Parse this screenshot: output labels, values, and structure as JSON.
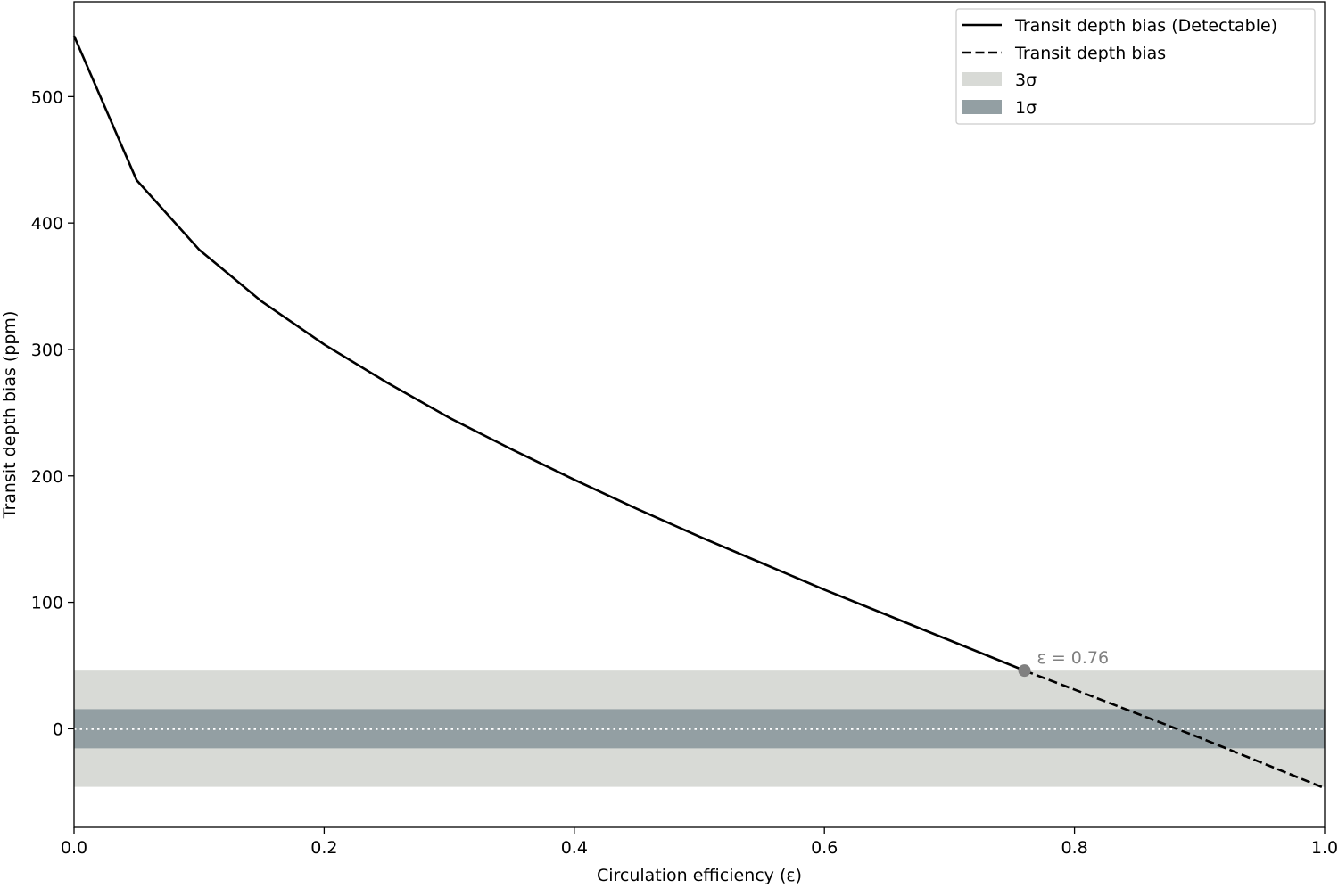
{
  "chart_data": {
    "type": "line",
    "xlabel": "Circulation efficiency (ε)",
    "ylabel": "Transit depth bias (ppm)",
    "xlim": [
      0.0,
      1.0
    ],
    "ylim": [
      -78,
      575
    ],
    "x_ticks": [
      0.0,
      0.2,
      0.4,
      0.6,
      0.8,
      1.0
    ],
    "x_tick_labels": [
      "0.0",
      "0.2",
      "0.4",
      "0.6",
      "0.8",
      "1.0"
    ],
    "y_ticks": [
      0,
      100,
      200,
      300,
      400,
      500
    ],
    "y_tick_labels": [
      "0",
      "100",
      "200",
      "300",
      "400",
      "500"
    ],
    "grid": false,
    "legend_placement": "top-right",
    "series": [
      {
        "name": "Transit depth bias (Detectable)",
        "style": "solid",
        "color": "#000000",
        "x": [
          0.0,
          0.05,
          0.1,
          0.15,
          0.2,
          0.25,
          0.3,
          0.35,
          0.4,
          0.45,
          0.5,
          0.55,
          0.6,
          0.65,
          0.7,
          0.76
        ],
        "y": [
          548,
          434,
          379,
          338,
          304,
          274,
          246,
          221,
          197,
          174,
          152,
          131,
          110,
          90,
          70,
          46
        ]
      },
      {
        "name": "Transit depth bias",
        "style": "dashed",
        "color": "#000000",
        "x": [
          0.76,
          0.8,
          0.85,
          0.9,
          0.95,
          1.0
        ],
        "y": [
          46,
          31,
          12,
          -7,
          -27,
          -47
        ]
      }
    ],
    "bands": [
      {
        "name": "3σ",
        "color": "#d8dad6",
        "y_low": -46,
        "y_high": 46
      },
      {
        "name": "1σ",
        "color": "#939fa3",
        "y_low": -15.5,
        "y_high": 15.5
      }
    ],
    "reference_line": {
      "y": 0,
      "style": "dotted",
      "color": "#ffffff"
    },
    "annotation": {
      "x": 0.76,
      "y": 46,
      "text": "ε = 0.76",
      "color": "#808080"
    }
  }
}
